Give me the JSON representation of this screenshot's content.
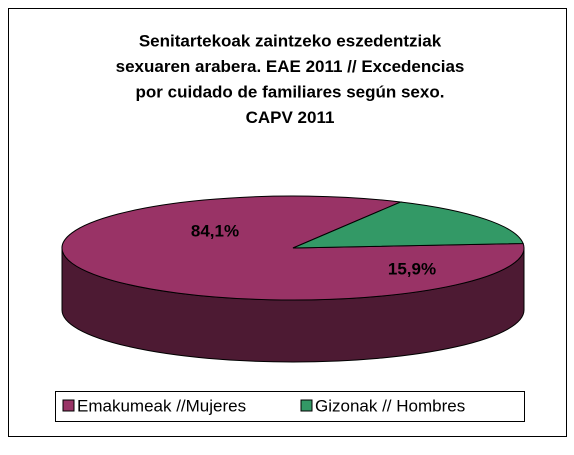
{
  "chart_data": {
    "type": "pie3d",
    "title": [
      "Senitartekoak zaintzeko eszedentziak",
      "sexuaren arabera. EAE 2011 // Excedencias",
      "por cuidado de familiares según sexo.",
      "CAPV 2011"
    ],
    "categories": [
      "Emakumeak //Mujeres",
      "Gizonak // Hombres"
    ],
    "values": [
      84.1,
      15.9
    ],
    "value_labels": [
      "84,1%",
      "15,9%"
    ],
    "colors": [
      "#993366",
      "#339966"
    ],
    "legend": "bottom"
  }
}
